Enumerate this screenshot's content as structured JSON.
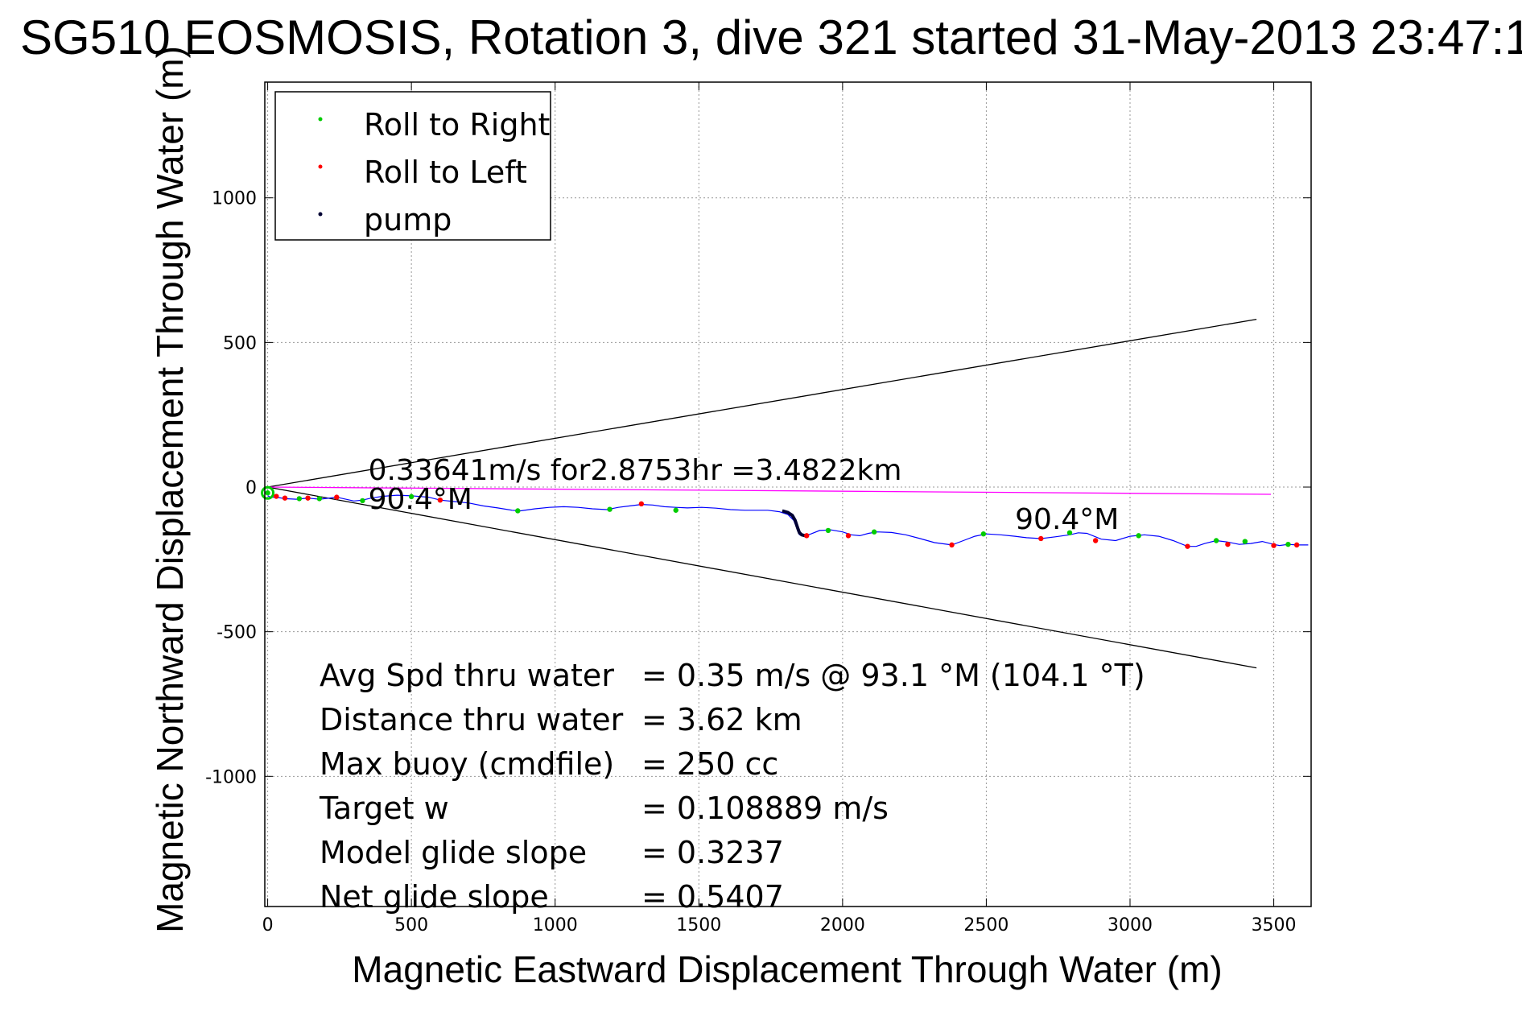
{
  "chart_data": {
    "type": "line",
    "title": "SG510 EOSMOSIS, Rotation 3, dive 321 started 31-May-2013 23:47:1",
    "xlabel": "Magnetic Eastward Displacement Through Water (m)",
    "ylabel": "Magnetic Northward Displacement Through Water (m)",
    "xlim": [
      -10,
      3630
    ],
    "ylim": [
      -1450,
      1400
    ],
    "xticks": [
      0,
      500,
      1000,
      1500,
      2000,
      2500,
      3000,
      3500
    ],
    "yticks": [
      -1000,
      -500,
      0,
      500,
      1000
    ],
    "grid": true,
    "legend_position": "top-left",
    "legend": [
      {
        "label": "Roll to Right",
        "color": "#00cc00"
      },
      {
        "label": "Roll to Left",
        "color": "#ff0000"
      },
      {
        "label": "pump",
        "color": "#000033"
      }
    ],
    "track": {
      "color": "#0000ff",
      "x": [
        0,
        10,
        30,
        60,
        100,
        140,
        180,
        240,
        300,
        330,
        360,
        400,
        450,
        500,
        560,
        600,
        650,
        700,
        750,
        800,
        850,
        880,
        930,
        980,
        1030,
        1080,
        1130,
        1180,
        1220,
        1260,
        1300,
        1340,
        1380,
        1420,
        1460,
        1510,
        1560,
        1610,
        1660,
        1700,
        1740,
        1780,
        1810,
        1830,
        1840,
        1845,
        1850,
        1865,
        1890,
        1920,
        1960,
        2000,
        2030,
        2060,
        2090,
        2120,
        2170,
        2220,
        2270,
        2320,
        2380,
        2420,
        2460,
        2500,
        2550,
        2600,
        2640,
        2690,
        2740,
        2790,
        2820,
        2850,
        2900,
        2950,
        3000,
        3050,
        3100,
        3150,
        3200,
        3230,
        3260,
        3300,
        3340,
        3380,
        3420,
        3460,
        3500,
        3520,
        3550,
        3580,
        3620
      ],
      "y": [
        -30,
        -35,
        -35,
        -40,
        -42,
        -38,
        -42,
        -35,
        -48,
        -45,
        -38,
        -32,
        -28,
        -30,
        -35,
        -45,
        -50,
        -55,
        -65,
        -72,
        -80,
        -82,
        -75,
        -70,
        -68,
        -70,
        -75,
        -78,
        -70,
        -65,
        -60,
        -62,
        -68,
        -70,
        -72,
        -70,
        -73,
        -78,
        -80,
        -80,
        -80,
        -85,
        -95,
        -115,
        -140,
        -155,
        -165,
        -170,
        -162,
        -150,
        -148,
        -155,
        -165,
        -168,
        -160,
        -155,
        -157,
        -165,
        -178,
        -192,
        -200,
        -185,
        -170,
        -162,
        -165,
        -170,
        -175,
        -178,
        -172,
        -165,
        -158,
        -160,
        -180,
        -185,
        -170,
        -165,
        -170,
        -185,
        -205,
        -205,
        -195,
        -185,
        -190,
        -198,
        -195,
        -188,
        -198,
        -202,
        -198,
        -200,
        -200
      ]
    },
    "roll_right_points": {
      "x": [
        0,
        110,
        180,
        330,
        500,
        870,
        1190,
        1420,
        1950,
        2110,
        2490,
        2790,
        3030,
        3300,
        3400,
        3550
      ],
      "y": [
        -20,
        -40,
        -40,
        -47,
        -33,
        -82,
        -77,
        -80,
        -150,
        -155,
        -162,
        -158,
        -168,
        -185,
        -188,
        -198
      ]
    },
    "roll_left_points": {
      "x": [
        30,
        60,
        140,
        240,
        600,
        1300,
        1875,
        2020,
        2380,
        2690,
        2880,
        3200,
        3340,
        3500,
        3580
      ],
      "y": [
        -32,
        -38,
        -38,
        -35,
        -45,
        -58,
        -168,
        -168,
        -200,
        -178,
        -185,
        -205,
        -198,
        -202,
        -200
      ]
    },
    "pump_segment": {
      "x": [
        1790,
        1810,
        1825,
        1835,
        1840,
        1845,
        1850,
        1858,
        1870
      ],
      "y": [
        -82,
        -88,
        -98,
        -115,
        -130,
        -145,
        -158,
        -165,
        -168
      ]
    },
    "reference_lines": [
      {
        "name": "upper-bound",
        "color": "#000000",
        "x": [
          0,
          3440
        ],
        "y": [
          0,
          580
        ]
      },
      {
        "name": "lower-bound",
        "color": "#000000",
        "x": [
          0,
          3440
        ],
        "y": [
          0,
          -625
        ]
      },
      {
        "name": "heading-line",
        "color": "#ff00ff",
        "x": [
          0,
          3490
        ],
        "y": [
          0,
          -25
        ]
      }
    ],
    "annotations": [
      {
        "text": "0.33641m/s for2.8753hr =3.4822km",
        "x": 350,
        "y": 25
      },
      {
        "text": "90.4°M",
        "x": 350,
        "y": -75
      },
      {
        "text": "90.4°M",
        "x": 2600,
        "y": -145
      }
    ],
    "stats": [
      {
        "label": "Avg Spd thru water",
        "value": "=  0.35 m/s @  93.1 °M (104.1 °T)"
      },
      {
        "label": "Distance thru water",
        "value": "=  3.62 km"
      },
      {
        "label": "Max buoy (cmdfile)",
        "value": "= 250 cc"
      },
      {
        "label": "Target w",
        "value": "= 0.108889 m/s"
      },
      {
        "label": "Model glide slope",
        "value": "= 0.3237"
      },
      {
        "label": "Net glide slope",
        "value": "= 0.5407"
      }
    ]
  }
}
